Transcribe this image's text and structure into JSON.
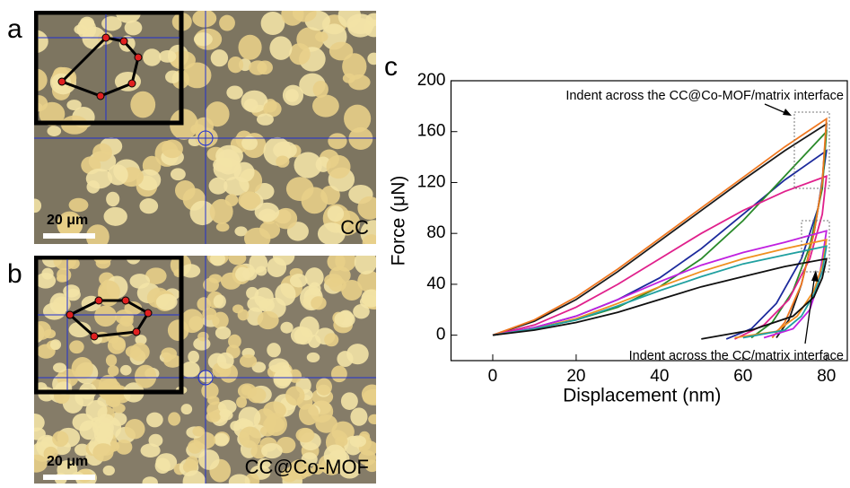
{
  "images": [
    {
      "label": "a",
      "scale_bar": "20 μm",
      "caption": "CC"
    },
    {
      "label": "b",
      "scale_bar": "20 μm",
      "caption": "CC@Co-MOF"
    }
  ],
  "chart_data": {
    "type": "line",
    "label": "c",
    "x_label": "Displacement (nm)",
    "y_label": "Force (μN)",
    "xlim": [
      -10,
      85
    ],
    "ylim": [
      -20,
      200
    ],
    "xticks": [
      0,
      20,
      40,
      60,
      80
    ],
    "yticks": [
      0,
      40,
      80,
      120,
      160,
      200
    ],
    "annotations": [
      "Indent across the CC@Co-MOF/matrix interface",
      "Indent across the CC/matrix interface"
    ],
    "series": [
      {
        "color": "#1a1a1a",
        "x": [
          0,
          10,
          20,
          30,
          40,
          50,
          60,
          70,
          80,
          79,
          77,
          74,
          71,
          68
        ],
        "y": [
          0,
          11,
          28,
          50,
          74,
          98,
          122,
          145,
          166,
          120,
          80,
          40,
          12,
          -2
        ]
      },
      {
        "color": "#1c2a9c",
        "x": [
          0,
          10,
          20,
          30,
          40,
          50,
          60,
          70,
          80,
          78,
          74,
          68,
          62,
          56
        ],
        "y": [
          0,
          6,
          15,
          28,
          45,
          68,
          95,
          122,
          145,
          100,
          60,
          25,
          5,
          -3
        ]
      },
      {
        "color": "#2a8a2a",
        "x": [
          0,
          10,
          20,
          30,
          40,
          50,
          60,
          70,
          80,
          79,
          76,
          72,
          67,
          62
        ],
        "y": [
          0,
          5,
          12,
          22,
          38,
          60,
          90,
          125,
          160,
          115,
          70,
          35,
          10,
          -2
        ]
      },
      {
        "color": "#e0208c",
        "x": [
          0,
          10,
          20,
          30,
          40,
          50,
          60,
          70,
          80,
          79,
          76,
          71,
          65,
          58
        ],
        "y": [
          0,
          8,
          22,
          40,
          60,
          80,
          98,
          113,
          125,
          95,
          60,
          28,
          8,
          -3
        ]
      },
      {
        "color": "#f07820",
        "x": [
          0,
          10,
          20,
          30,
          40,
          50,
          60,
          70,
          80,
          79,
          77,
          74,
          70,
          67
        ],
        "y": [
          0,
          12,
          30,
          52,
          76,
          100,
          124,
          148,
          170,
          120,
          80,
          40,
          10,
          -2
        ]
      },
      {
        "color": "#c020e0",
        "x": [
          0,
          10,
          20,
          30,
          40,
          50,
          60,
          70,
          80,
          79,
          78,
          76,
          72,
          65
        ],
        "y": [
          0,
          6,
          15,
          28,
          42,
          55,
          65,
          73,
          82,
          60,
          40,
          20,
          5,
          -2
        ]
      },
      {
        "color": "#f09020",
        "x": [
          0,
          10,
          20,
          30,
          40,
          50,
          60,
          70,
          80,
          79,
          77,
          73,
          68,
          58
        ],
        "y": [
          0,
          5,
          13,
          25,
          38,
          50,
          60,
          68,
          75,
          55,
          35,
          15,
          3,
          -2
        ]
      },
      {
        "color": "#20a0a0",
        "x": [
          0,
          10,
          20,
          30,
          40,
          50,
          60,
          70,
          80,
          79,
          77,
          74,
          70,
          60
        ],
        "y": [
          0,
          5,
          12,
          23,
          35,
          46,
          56,
          63,
          70,
          50,
          32,
          15,
          4,
          -2
        ]
      },
      {
        "color": "#101010",
        "x": [
          0,
          10,
          20,
          30,
          40,
          50,
          60,
          70,
          80,
          79,
          77,
          72,
          62,
          50
        ],
        "y": [
          0,
          4,
          10,
          18,
          28,
          38,
          46,
          54,
          60,
          45,
          30,
          15,
          4,
          -3
        ]
      }
    ]
  }
}
